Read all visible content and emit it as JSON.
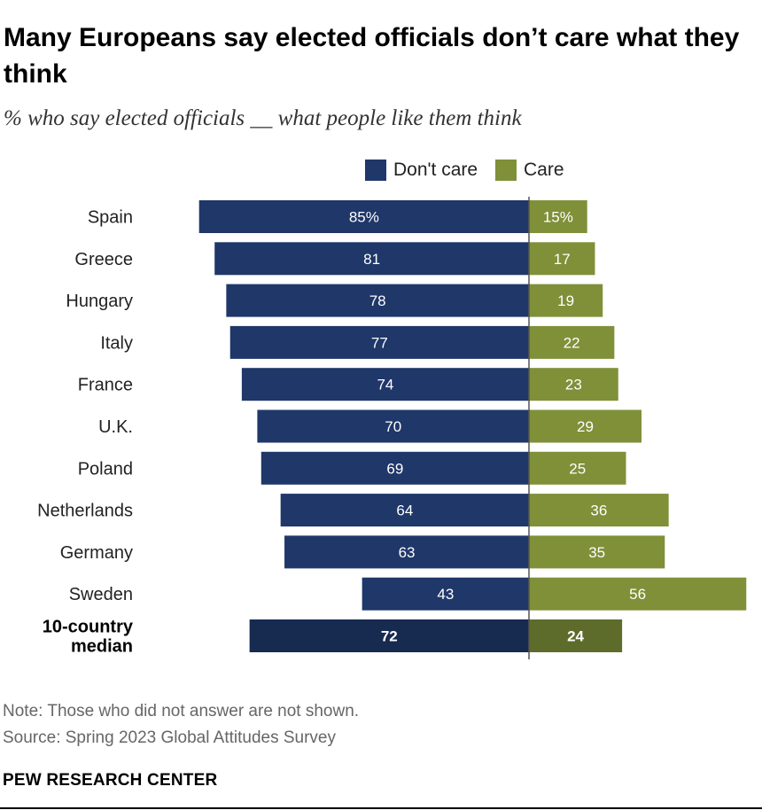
{
  "title": "Many Europeans say elected officials don’t care what they think",
  "subtitle": "% who say elected officials __ what people like them think",
  "note": "Note: Those who did not answer are not shown.",
  "source": "Source: Spring 2023 Global Attitudes Survey",
  "brand": "PEW RESEARCH CENTER",
  "colors": {
    "dont_care": "#1f3769",
    "care": "#7f9039",
    "median_dont_care": "#172a4f",
    "median_care": "#5e6c2b",
    "axis": "#555555"
  },
  "chart_data": {
    "type": "bar",
    "orientation": "horizontal-diverging",
    "categories": [
      "Spain",
      "Greece",
      "Hungary",
      "Italy",
      "France",
      "U.K.",
      "Poland",
      "Netherlands",
      "Germany",
      "Sweden",
      "10-country median"
    ],
    "category_lines": [
      [
        "Spain"
      ],
      [
        "Greece"
      ],
      [
        "Hungary"
      ],
      [
        "Italy"
      ],
      [
        "France"
      ],
      [
        "U.K."
      ],
      [
        "Poland"
      ],
      [
        "Netherlands"
      ],
      [
        "Germany"
      ],
      [
        "Sweden"
      ],
      [
        "10-country",
        "median"
      ]
    ],
    "series": [
      {
        "name": "Don't care",
        "values": [
          85,
          81,
          78,
          77,
          74,
          70,
          69,
          64,
          63,
          43,
          72
        ],
        "labels": [
          "85%",
          "81",
          "78",
          "77",
          "74",
          "70",
          "69",
          "64",
          "63",
          "43",
          "72"
        ]
      },
      {
        "name": "Care",
        "values": [
          15,
          17,
          19,
          22,
          23,
          29,
          25,
          36,
          35,
          56,
          24
        ],
        "labels": [
          "15%",
          "17",
          "19",
          "22",
          "23",
          "29",
          "25",
          "36",
          "35",
          "56",
          "24"
        ]
      }
    ],
    "highlight_last": true,
    "legend_position": "top"
  }
}
